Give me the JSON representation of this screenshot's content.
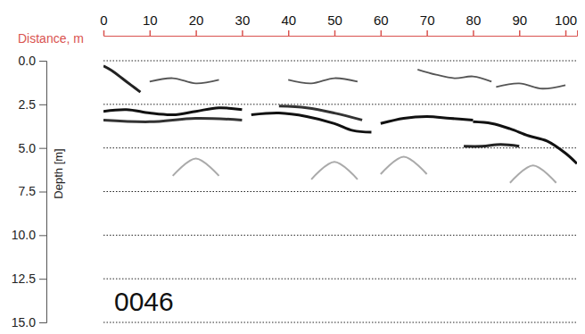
{
  "chart_data": {
    "type": "line",
    "x_label": "Distance, m",
    "y_label": "Depth [m]",
    "annotations": [
      "0046"
    ],
    "xlim": [
      0,
      102.5
    ],
    "xticks": [
      0,
      10,
      20,
      30,
      40,
      50,
      60,
      70,
      80,
      90,
      100
    ],
    "ylim": [
      15,
      0
    ],
    "yticks": [
      {
        "value": 0,
        "label": "0.0"
      },
      2.5,
      {
        "value": 5,
        "label": "5.0"
      },
      7.5,
      {
        "value": 10,
        "label": "10.0"
      },
      12.5,
      {
        "value": 15,
        "label": "15.0"
      }
    ],
    "grid": true,
    "series": [
      {
        "color": "#222222",
        "x": [
          0,
          2,
          4,
          6,
          8
        ],
        "values": [
          0.3,
          0.6,
          1.0,
          1.4,
          1.8
        ]
      },
      {
        "color": "#111111",
        "x": [
          0,
          5,
          10,
          15,
          20,
          25,
          30
        ],
        "values": [
          2.9,
          2.8,
          3.0,
          3.1,
          2.9,
          2.7,
          2.8
        ]
      },
      {
        "color": "#333333",
        "x": [
          0,
          10,
          20,
          30
        ],
        "values": [
          3.4,
          3.5,
          3.3,
          3.4
        ]
      },
      {
        "color": "#111111",
        "x": [
          32,
          38,
          44,
          50,
          54,
          58
        ],
        "values": [
          3.1,
          3.0,
          3.2,
          3.6,
          4.0,
          4.1
        ]
      },
      {
        "color": "#333333",
        "x": [
          38,
          44,
          50,
          56
        ],
        "values": [
          2.6,
          2.7,
          3.0,
          3.4
        ]
      },
      {
        "color": "#111111",
        "x": [
          60,
          65,
          70,
          75,
          80
        ],
        "values": [
          3.6,
          3.3,
          3.2,
          3.3,
          3.4
        ]
      },
      {
        "color": "#111111",
        "x": [
          80,
          84,
          88,
          92,
          96,
          100,
          102.5
        ],
        "values": [
          3.5,
          3.6,
          3.9,
          4.3,
          4.6,
          5.3,
          5.9
        ]
      },
      {
        "color": "#222222",
        "x": [
          78,
          82,
          86,
          90
        ],
        "values": [
          4.9,
          4.9,
          4.8,
          4.9
        ]
      },
      {
        "color": "#555555",
        "x": [
          10,
          15,
          20,
          25
        ],
        "values": [
          1.2,
          1.0,
          1.3,
          1.1
        ]
      },
      {
        "color": "#555555",
        "x": [
          40,
          45,
          50,
          55
        ],
        "values": [
          1.1,
          1.3,
          1.0,
          1.2
        ]
      },
      {
        "color": "#555555",
        "x": [
          68,
          72,
          76,
          80,
          84
        ],
        "values": [
          0.5,
          0.8,
          1.0,
          0.9,
          1.2
        ]
      },
      {
        "color": "#555555",
        "x": [
          85,
          90,
          95,
          100
        ],
        "values": [
          1.5,
          1.3,
          1.6,
          1.4
        ]
      },
      {
        "color": "#aaaaaa",
        "x": [
          15,
          20,
          25
        ],
        "values": [
          6.6,
          5.6,
          6.6
        ]
      },
      {
        "color": "#aaaaaa",
        "x": [
          45,
          50,
          55
        ],
        "values": [
          6.8,
          5.8,
          6.8
        ]
      },
      {
        "color": "#aaaaaa",
        "x": [
          60,
          65,
          70
        ],
        "values": [
          6.5,
          5.5,
          6.5
        ]
      },
      {
        "color": "#aaaaaa",
        "x": [
          88,
          93,
          98
        ],
        "values": [
          7.0,
          6.0,
          7.0
        ]
      }
    ]
  }
}
